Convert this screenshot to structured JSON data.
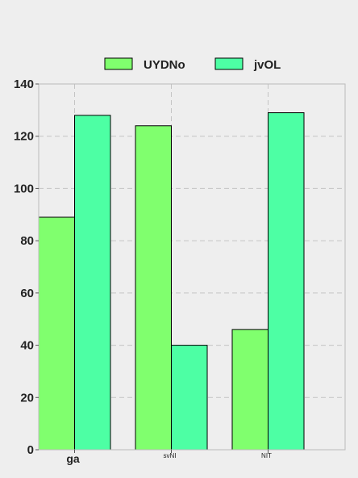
{
  "chart_data": {
    "type": "bar",
    "categories": [
      "ga",
      "svNI",
      "NIT"
    ],
    "series": [
      {
        "name": "UYDNo",
        "values": [
          89,
          124,
          46
        ],
        "color": "#80ff6e"
      },
      {
        "name": "jvOL",
        "values": [
          128,
          40,
          129
        ],
        "color": "#4dffa4"
      }
    ],
    "ylim": [
      0,
      140
    ],
    "yticks": [
      0,
      20,
      40,
      60,
      80,
      100,
      120,
      140
    ],
    "grid": true,
    "legend_position": "top-center",
    "title": "",
    "xlabel": "",
    "ylabel": ""
  }
}
